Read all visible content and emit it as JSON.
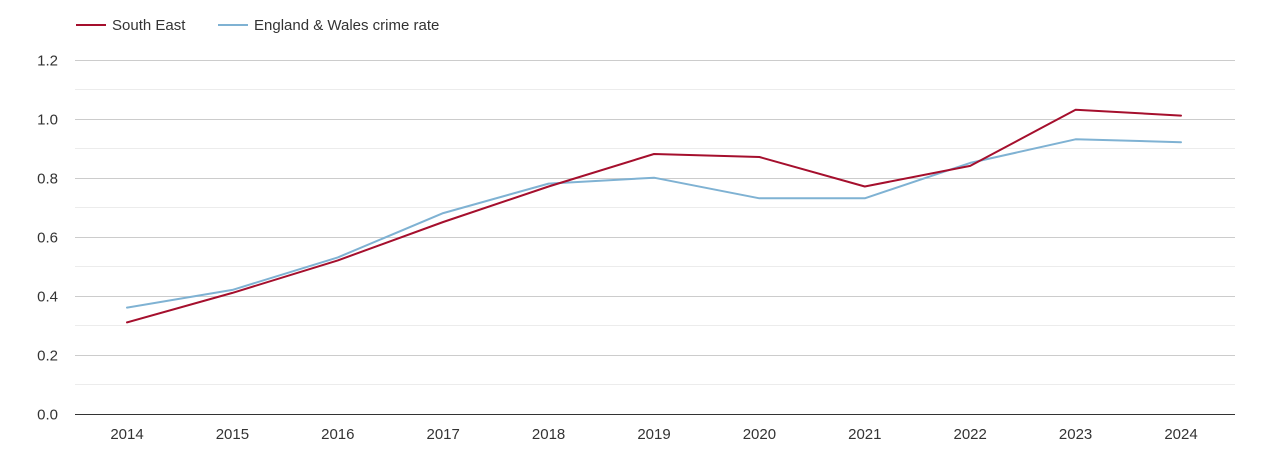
{
  "chart_data": {
    "type": "line",
    "title": "",
    "xlabel": "",
    "ylabel": "",
    "categories": [
      "2014",
      "2015",
      "2016",
      "2017",
      "2018",
      "2019",
      "2020",
      "2021",
      "2022",
      "2023",
      "2024"
    ],
    "ylim": [
      0,
      1.2
    ],
    "yticks": [
      "0.0",
      "0.2",
      "0.4",
      "0.6",
      "0.8",
      "1.0",
      "1.2"
    ],
    "grid": true,
    "legend_position": "top-left",
    "series": [
      {
        "name": "South East",
        "color": "#a50f2d",
        "values": [
          0.31,
          0.41,
          0.52,
          0.65,
          0.77,
          0.88,
          0.87,
          0.77,
          0.84,
          1.03,
          1.01
        ]
      },
      {
        "name": "England & Wales crime rate",
        "color": "#7fb2d3",
        "values": [
          0.36,
          0.42,
          0.53,
          0.68,
          0.78,
          0.8,
          0.73,
          0.73,
          0.85,
          0.93,
          0.92
        ]
      }
    ]
  }
}
